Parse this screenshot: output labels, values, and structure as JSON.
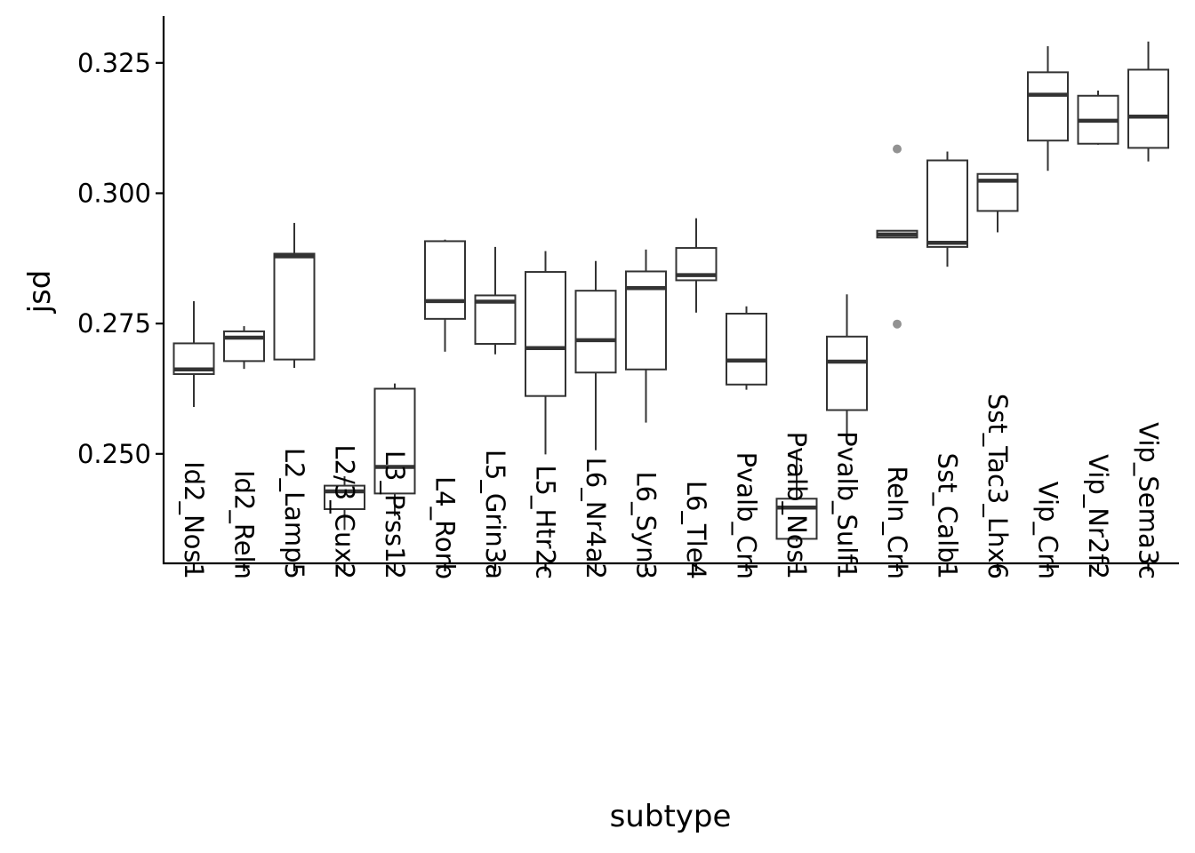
{
  "chart_data": {
    "type": "boxplot",
    "xlabel": "subtype",
    "ylabel": "jsd",
    "ylim": [
      0.229,
      0.334
    ],
    "yticks": [
      "0.250",
      "0.275",
      "0.300",
      "0.325"
    ],
    "ytick_values": [
      0.25,
      0.275,
      0.3,
      0.325
    ],
    "grid": false,
    "legend": "none",
    "box_color": "#333333",
    "outlier_color": "#7f7f7f",
    "categories": [
      "Id2_Nos1",
      "Id2_Reln",
      "L2_Lamp5",
      "L2/3_Cux2",
      "L3_Prss12",
      "L4_Rorb",
      "L5_Grin3a",
      "L5_Htr2c",
      "L6_Nr4a2",
      "L6_Syn3",
      "L6_Tle4",
      "Pvalb_Crh",
      "Pvalb_Nos1",
      "Pvalb_Sulf1",
      "Reln_Crh",
      "Sst_Calb1",
      "Sst_Tac3_Lhx6",
      "Vip_Crh",
      "Vip_Nr2f2",
      "Vip_Sema3c"
    ],
    "boxes": [
      {
        "category": "Id2_Nos1",
        "whisker_low": 0.259,
        "q1": 0.2653,
        "median": 0.2662,
        "q3": 0.2712,
        "whisker_high": 0.2793,
        "outliers": []
      },
      {
        "category": "Id2_Reln",
        "whisker_low": 0.2663,
        "q1": 0.2678,
        "median": 0.2723,
        "q3": 0.2735,
        "whisker_high": 0.2745,
        "outliers": []
      },
      {
        "category": "L2_Lamp5",
        "whisker_low": 0.2665,
        "q1": 0.2681,
        "median": 0.2879,
        "q3": 0.2884,
        "whisker_high": 0.2943,
        "outliers": []
      },
      {
        "category": "L2/3_Cux2",
        "whisker_low": 0.2354,
        "q1": 0.2394,
        "median": 0.2428,
        "q3": 0.2439,
        "whisker_high": 0.2457,
        "outliers": []
      },
      {
        "category": "L3_Prss12",
        "whisker_low": 0.2381,
        "q1": 0.2424,
        "median": 0.2475,
        "q3": 0.2625,
        "whisker_high": 0.2635,
        "outliers": []
      },
      {
        "category": "L4_Rorb",
        "whisker_low": 0.2696,
        "q1": 0.2759,
        "median": 0.2793,
        "q3": 0.2908,
        "whisker_high": 0.2911,
        "outliers": []
      },
      {
        "category": "L5_Grin3a",
        "whisker_low": 0.2691,
        "q1": 0.2711,
        "median": 0.2792,
        "q3": 0.2804,
        "whisker_high": 0.2897,
        "outliers": []
      },
      {
        "category": "L5_Htr2c",
        "whisker_low": 0.2499,
        "q1": 0.2611,
        "median": 0.2703,
        "q3": 0.2849,
        "whisker_high": 0.2889,
        "outliers": []
      },
      {
        "category": "L6_Nr4a2",
        "whisker_low": 0.2507,
        "q1": 0.2656,
        "median": 0.2718,
        "q3": 0.2813,
        "whisker_high": 0.287,
        "outliers": []
      },
      {
        "category": "L6_Syn3",
        "whisker_low": 0.256,
        "q1": 0.2662,
        "median": 0.2818,
        "q3": 0.285,
        "whisker_high": 0.2892,
        "outliers": []
      },
      {
        "category": "L6_Tle4",
        "whisker_low": 0.2771,
        "q1": 0.2833,
        "median": 0.2843,
        "q3": 0.2895,
        "whisker_high": 0.2952,
        "outliers": []
      },
      {
        "category": "Pvalb_Crh",
        "whisker_low": 0.2623,
        "q1": 0.2633,
        "median": 0.2679,
        "q3": 0.2769,
        "whisker_high": 0.2783,
        "outliers": []
      },
      {
        "category": "Pvalb_Nos1",
        "whisker_low": 0.2332,
        "q1": 0.2337,
        "median": 0.2397,
        "q3": 0.2414,
        "whisker_high": 0.2507,
        "outliers": []
      },
      {
        "category": "Pvalb_Sulf1",
        "whisker_low": 0.2533,
        "q1": 0.2584,
        "median": 0.2677,
        "q3": 0.2725,
        "whisker_high": 0.2806,
        "outliers": []
      },
      {
        "category": "Reln_Crh",
        "whisker_low": 0.2915,
        "q1": 0.2915,
        "median": 0.2921,
        "q3": 0.2928,
        "whisker_high": 0.2928,
        "outliers": [
          0.3085,
          0.2749
        ]
      },
      {
        "category": "Sst_Calb1",
        "whisker_low": 0.2859,
        "q1": 0.2897,
        "median": 0.2905,
        "q3": 0.3063,
        "whisker_high": 0.308,
        "outliers": []
      },
      {
        "category": "Sst_Tac3_Lhx6",
        "whisker_low": 0.2925,
        "q1": 0.2966,
        "median": 0.3024,
        "q3": 0.3037,
        "whisker_high": 0.3037,
        "outliers": []
      },
      {
        "category": "Vip_Crh",
        "whisker_low": 0.3043,
        "q1": 0.3101,
        "median": 0.3189,
        "q3": 0.3232,
        "whisker_high": 0.3282,
        "outliers": []
      },
      {
        "category": "Vip_Nr2f2",
        "whisker_low": 0.3093,
        "q1": 0.3095,
        "median": 0.3139,
        "q3": 0.3187,
        "whisker_high": 0.3197,
        "outliers": []
      },
      {
        "category": "Vip_Sema3c",
        "whisker_low": 0.3061,
        "q1": 0.3087,
        "median": 0.3147,
        "q3": 0.3237,
        "whisker_high": 0.3291,
        "outliers": []
      }
    ]
  }
}
